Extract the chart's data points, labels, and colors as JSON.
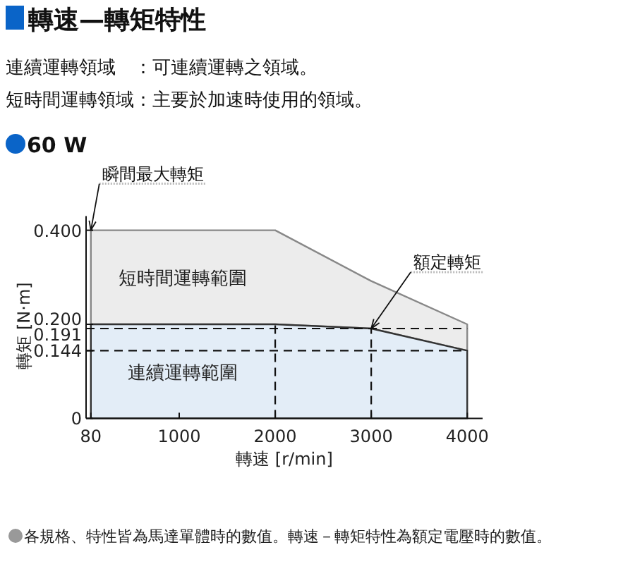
{
  "chart_data": {
    "type": "area",
    "title": "轉速—轉矩特性",
    "subtitle": "60 W",
    "xlabel": "轉速 [r/min]",
    "ylabel": "轉矩 [N·m]",
    "series": [
      {
        "name": "短時間運轉範圍",
        "color": "#ececec",
        "x": [
          80,
          2000,
          3000,
          4000
        ],
        "values": [
          0.4,
          0.4,
          0.292,
          0.2
        ]
      },
      {
        "name": "連續運轉範圍",
        "color": "#e3edf7",
        "x": [
          80,
          2000,
          3000,
          4000
        ],
        "values": [
          0.2,
          0.2,
          0.191,
          0.144
        ]
      }
    ],
    "xlim": [
      30,
      4160
    ],
    "ylim": [
      0,
      0.43
    ],
    "xticks": [
      80,
      1000,
      2000,
      3000,
      4000
    ],
    "yticks": [
      {
        "value": 0,
        "label": "0"
      },
      {
        "value": 0.144,
        "label": "0.144"
      },
      {
        "value": 0.191,
        "label": "0.191"
      },
      {
        "value": 0.2,
        "label": "0.200"
      },
      {
        "value": 0.4,
        "label": "0.400"
      }
    ],
    "ref_lines": [
      {
        "axis": "y",
        "value": 0.191,
        "line_style": "dashed"
      },
      {
        "axis": "y",
        "value": 0.144,
        "line_style": "dashed"
      },
      {
        "axis": "x",
        "value": 2000,
        "line_style": "dashed"
      },
      {
        "axis": "x",
        "value": 3000,
        "line_style": "dashed"
      }
    ],
    "annotations": [
      "連續運轉領域　：可連續運轉之領域。",
      "短時間運轉領域：主要於加速時使用的領域。",
      {
        "text": "瞬間最大轉矩",
        "x": 80,
        "y": 0.4
      },
      {
        "text": "額定轉矩",
        "x": 3000,
        "y": 0.191
      },
      "各規格、特性皆為馬達單體時的數值。轉速－轉矩特性為額定電壓時的數值。"
    ],
    "grid": false,
    "marker": "none"
  }
}
